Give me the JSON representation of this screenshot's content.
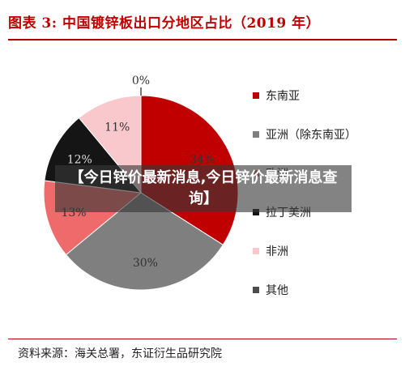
{
  "figure": {
    "title": "图表 3:   中国镀锌板出口分地区占比（2019 年）",
    "source": "资料来源：海关总署，东证衍生品研究院"
  },
  "overlay": {
    "text": "【今日锌价最新消息,今日锌价最新消息查询】"
  },
  "chart_data": {
    "type": "pie",
    "title": "中国镀锌板出口分地区占比（2019 年）",
    "series": [
      {
        "name": "东南亚",
        "value": 34,
        "label": "34%",
        "color": "#c00000"
      },
      {
        "name": "亚洲（除东南亚）",
        "value": 30,
        "label": "30%",
        "color": "#7f7f7f"
      },
      {
        "name": "欧洲",
        "value": 13,
        "label": "13%",
        "color": "#ef6b6b"
      },
      {
        "name": "拉丁美洲",
        "value": 12,
        "label": "12%",
        "color": "#151515"
      },
      {
        "name": "非洲",
        "value": 11,
        "label": "11%",
        "color": "#f8c8cc"
      },
      {
        "name": "其他",
        "value": 0,
        "label": "0%",
        "color": "#4d4d4d"
      }
    ],
    "slice_order": [
      "东南亚",
      "亚洲（除东南亚）",
      "欧洲",
      "拉丁美洲",
      "非洲",
      "其他"
    ],
    "legend": {
      "position": "right",
      "entries": [
        "东南亚",
        "亚洲（除东南亚）",
        "欧洲",
        "拉丁美洲",
        "非洲",
        "其他"
      ]
    }
  }
}
